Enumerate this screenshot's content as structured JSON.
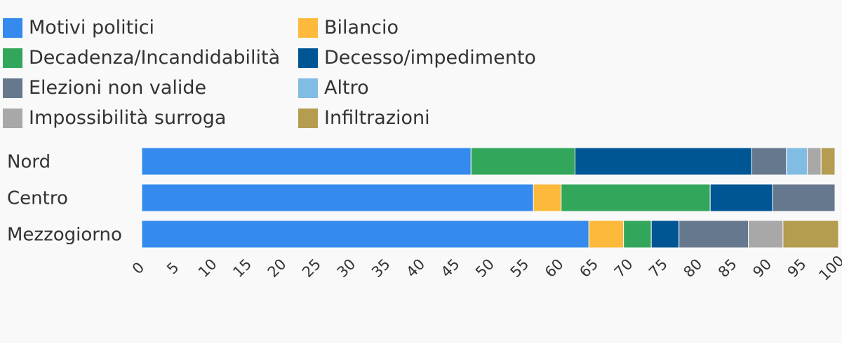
{
  "chart_data": {
    "type": "bar",
    "orientation": "horizontal",
    "stacked": true,
    "categories": [
      "Nord",
      "Centro",
      "Mezzogiorno"
    ],
    "series": [
      {
        "name": "Motivi politici",
        "color": "#348aed",
        "values": [
          47.5,
          56.5,
          64.5
        ]
      },
      {
        "name": "Bilancio",
        "color": "#fdb93b",
        "values": [
          0,
          4,
          5
        ]
      },
      {
        "name": "Decadenza/Incandidabilità",
        "color": "#32a65a",
        "values": [
          15,
          21.5,
          4
        ]
      },
      {
        "name": "Decesso/impedimento",
        "color": "#005594",
        "values": [
          25.5,
          9,
          4
        ]
      },
      {
        "name": "Elezioni non valide",
        "color": "#66788d",
        "values": [
          5,
          9,
          10
        ]
      },
      {
        "name": "Altro",
        "color": "#80bce3",
        "values": [
          3,
          0,
          0
        ]
      },
      {
        "name": "Impossibilità surroga",
        "color": "#a8a8a8",
        "values": [
          2,
          0,
          5
        ]
      },
      {
        "name": "Infiltrazioni",
        "color": "#b49c50",
        "values": [
          2,
          0,
          8
        ]
      }
    ],
    "legend_order": [
      0,
      2,
      4,
      6,
      1,
      3,
      5,
      7
    ],
    "xlim": [
      0,
      100
    ],
    "xticks": [
      0,
      5,
      10,
      15,
      20,
      25,
      30,
      35,
      40,
      45,
      50,
      55,
      60,
      65,
      70,
      75,
      80,
      85,
      90,
      95,
      100
    ],
    "legend_position": "top",
    "grid": false
  }
}
